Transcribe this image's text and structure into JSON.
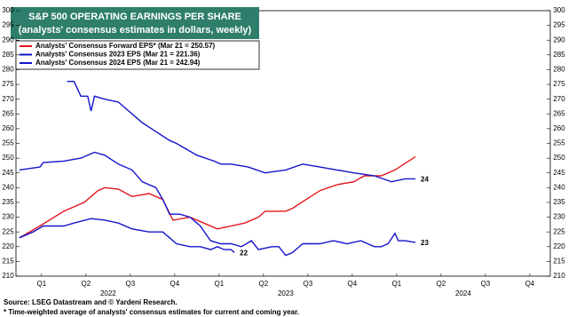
{
  "chart_data": {
    "type": "line",
    "title": "S&P 500 OPERATING EARNINGS PER SHARE",
    "subtitle": "(analysts' consensus estimates in dollars, weekly)",
    "notes": [
      "Source: LSEG Datastream and © Yardeni Research.",
      "* Time-weighted average of analysts' consensus estimates for current and coming year."
    ],
    "xlim": [
      -1,
      155.5
    ],
    "xticks": [
      {
        "value": 6.5,
        "label": "Q1"
      },
      {
        "value": 19.5,
        "label": "Q2"
      },
      {
        "value": 32.5,
        "label": "Q3"
      },
      {
        "value": 45.5,
        "label": "Q4"
      },
      {
        "value": 58.5,
        "label": "Q1"
      },
      {
        "value": 71.5,
        "label": "Q2"
      },
      {
        "value": 84.5,
        "label": "Q3"
      },
      {
        "value": 97.5,
        "label": "Q4"
      },
      {
        "value": 110.5,
        "label": "Q1"
      },
      {
        "value": 123.5,
        "label": "Q2"
      },
      {
        "value": 136.5,
        "label": "Q3"
      },
      {
        "value": 149.5,
        "label": "Q4"
      }
    ],
    "years": [
      {
        "value": 26,
        "label": "2022"
      },
      {
        "value": 78,
        "label": "2023"
      },
      {
        "value": 130,
        "label": "2024"
      }
    ],
    "ylim": [
      210,
      300
    ],
    "yticks": [
      210,
      215,
      220,
      225,
      230,
      235,
      240,
      245,
      250,
      255,
      260,
      265,
      270,
      275,
      280,
      285,
      290,
      295,
      300
    ],
    "grid": false,
    "series": [
      {
        "name": "Analysts' Consensus Forward EPS* (Mar 21 = 250.57)",
        "color": "#e3161b",
        "x": [
          0,
          6,
          13,
          19,
          23,
          25,
          29,
          33,
          38,
          42,
          45,
          50,
          54,
          58,
          62,
          66,
          70,
          72,
          78,
          80,
          84,
          88,
          93,
          98,
          101,
          106,
          110,
          114,
          116
        ],
        "values": [
          223,
          227,
          232,
          235,
          239,
          240,
          239.5,
          237,
          238,
          236,
          229,
          230,
          228,
          226,
          227,
          228,
          230,
          232,
          232,
          233,
          236,
          239,
          241,
          242,
          244,
          244,
          246,
          249,
          250.5
        ]
      },
      {
        "name": "Analysts' Consensus 2023 EPS (Mar 21 = 221.36)",
        "color": "#1414cc",
        "label": "23",
        "x": [
          0,
          6,
          7,
          13,
          18,
          22,
          25,
          29,
          33,
          36,
          40,
          42,
          44,
          47,
          50,
          53,
          56,
          59,
          62,
          65,
          68,
          70,
          74,
          76,
          78,
          80,
          83,
          88,
          92,
          96,
          100,
          104,
          106,
          108,
          110,
          111,
          113,
          116
        ],
        "values": [
          246,
          247,
          248.5,
          249,
          250,
          252,
          251,
          248,
          246,
          242,
          240,
          236,
          231,
          231,
          230,
          227,
          222,
          221,
          221,
          220,
          222,
          219,
          220,
          220,
          217,
          218,
          221,
          221,
          222,
          221,
          222,
          220,
          220,
          221,
          224.5,
          222,
          222,
          221.4
        ]
      },
      {
        "name": "Analysts' Consensus 2024 EPS (Mar 21 = 242.94)",
        "color": "#1414cc",
        "label": "24",
        "x": [
          14,
          16,
          18,
          20,
          21,
          22,
          25,
          29,
          33,
          36,
          40,
          44,
          46,
          49,
          52,
          57,
          59,
          62,
          67,
          72,
          78,
          83,
          88,
          93,
          98,
          104,
          109,
          113,
          116
        ],
        "values": [
          276,
          276,
          271,
          271,
          266,
          271,
          270,
          269,
          265,
          262,
          259,
          256,
          255,
          253,
          251,
          249,
          248,
          248,
          247,
          245,
          246,
          248,
          247,
          246,
          245,
          244,
          242,
          243,
          243
        ]
      },
      {
        "color": "#1414cc",
        "label": "22",
        "x": [
          0,
          4,
          7,
          13,
          16,
          21,
          25,
          29,
          33,
          38,
          42,
          44,
          46,
          50,
          53,
          56,
          58,
          60,
          62,
          63
        ],
        "values": [
          223,
          225,
          227,
          227,
          228,
          229.5,
          229,
          228,
          226,
          225,
          225,
          223,
          221,
          220,
          220,
          219,
          220,
          219,
          219,
          218
        ]
      }
    ]
  }
}
